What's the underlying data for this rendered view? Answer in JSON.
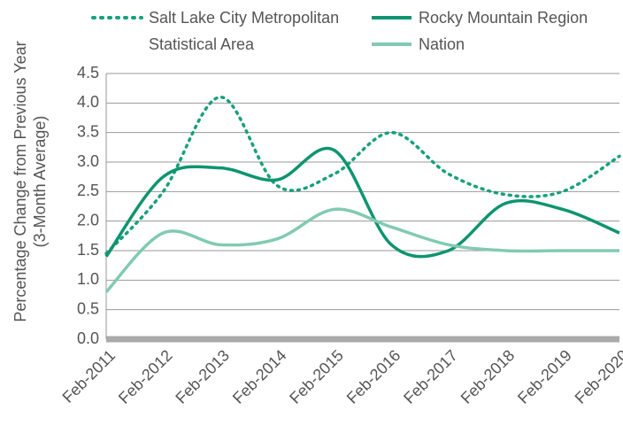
{
  "chart_data": {
    "type": "line",
    "y_label": [
      "Percentage Change from Previous Year",
      "(3-Month Average)"
    ],
    "categories": [
      "Feb-2011",
      "Feb-2012",
      "Feb-2013",
      "Feb-2014",
      "Feb-2015",
      "Feb-2016",
      "Feb-2017",
      "Feb-2018",
      "Feb-2019",
      "Feb-2020"
    ],
    "series": [
      {
        "name": "Salt Lake City Metropolitan Statistical Area",
        "color": "#17a07c",
        "dashed": true,
        "values": [
          1.45,
          2.5,
          4.1,
          2.6,
          2.8,
          3.5,
          2.8,
          2.45,
          2.5,
          3.1
        ]
      },
      {
        "name": "Rocky Mountain Region",
        "color": "#0e9470",
        "dashed": false,
        "values": [
          1.4,
          2.75,
          2.9,
          2.7,
          3.2,
          1.6,
          1.5,
          2.3,
          2.2,
          1.8
        ]
      },
      {
        "name": "Nation",
        "color": "#82cab2",
        "dashed": false,
        "values": [
          0.8,
          1.8,
          1.6,
          1.7,
          2.2,
          1.9,
          1.6,
          1.5,
          1.5,
          1.5
        ]
      }
    ],
    "ylim": [
      0,
      4.5
    ],
    "yticks": [
      {
        "value": 0,
        "label": "0.0"
      },
      0.5,
      {
        "value": 1,
        "label": "1.0"
      },
      1.5,
      {
        "value": 2,
        "label": "2.0"
      },
      2.5,
      {
        "value": 3,
        "label": "3.0"
      },
      3.5,
      {
        "value": 4,
        "label": "4.0"
      },
      4.5
    ],
    "grid": true
  }
}
